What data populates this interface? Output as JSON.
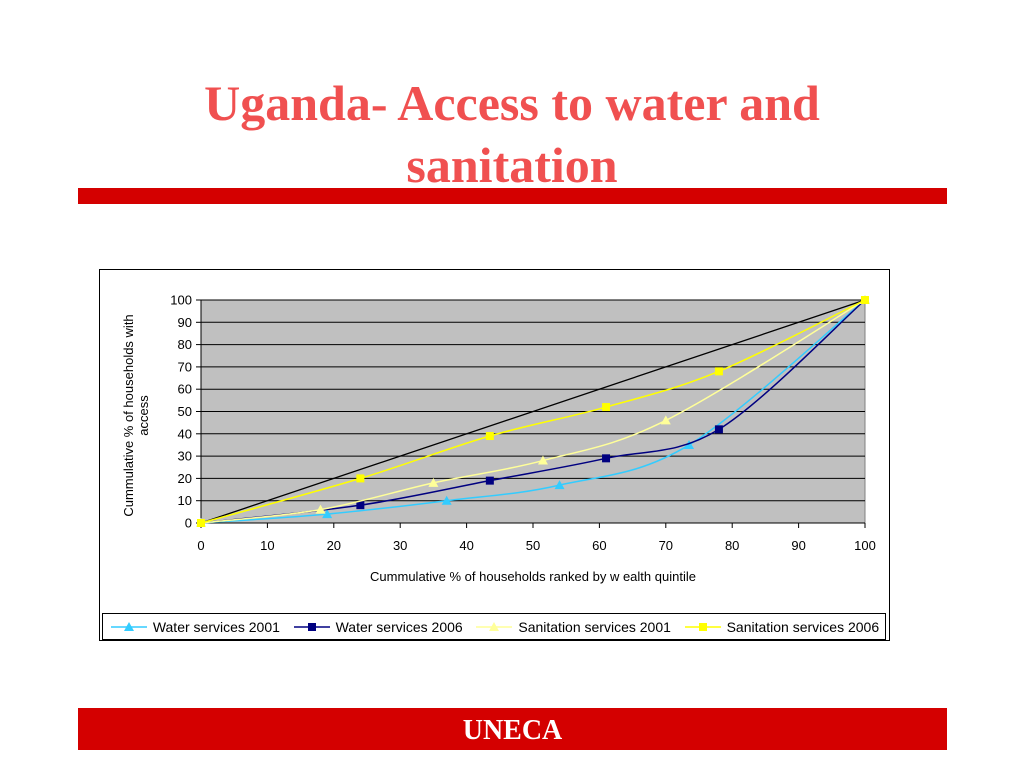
{
  "slide": {
    "title_line1": "Uganda- Access to water and",
    "title_line2": "sanitation",
    "footer": "UNECA",
    "title_color": "#f05050",
    "bar_color": "#d40000"
  },
  "chart_data": {
    "type": "line",
    "xlabel": "Cummulative % of households ranked by w ealth quintile",
    "ylabel_line1": "Cummulative % of households with",
    "ylabel_line2": "access",
    "xlim": [
      0,
      100
    ],
    "ylim": [
      0,
      100
    ],
    "xticks": [
      0,
      10,
      20,
      30,
      40,
      50,
      60,
      70,
      80,
      90,
      100
    ],
    "yticks": [
      0,
      10,
      20,
      30,
      40,
      50,
      60,
      70,
      80,
      90,
      100
    ],
    "grid": "horizontal",
    "plot_background": "#c0c0c0",
    "legend_position": "bottom",
    "equality_line": {
      "x": [
        0,
        100
      ],
      "y": [
        0,
        100
      ],
      "color": "#000000"
    },
    "series": [
      {
        "name": "Water services 2001",
        "marker": "triangle",
        "color": "#33ccff",
        "x": [
          0,
          19,
          37,
          54,
          73.5,
          100
        ],
        "y": [
          0,
          4,
          10,
          17,
          35,
          100
        ]
      },
      {
        "name": "Water services 2006",
        "marker": "square",
        "color": "#000080",
        "x": [
          0,
          24,
          43.5,
          61,
          78,
          100
        ],
        "y": [
          0,
          8,
          19,
          29,
          42,
          100
        ]
      },
      {
        "name": "Sanitation services 2001",
        "marker": "triangle",
        "color": "#ffff99",
        "x": [
          0,
          18,
          35,
          51.5,
          70,
          100
        ],
        "y": [
          0,
          6,
          18,
          28,
          46,
          100
        ]
      },
      {
        "name": "Sanitation services 2006",
        "marker": "square",
        "color": "#ffff00",
        "x": [
          0,
          24,
          43.5,
          61,
          78,
          100
        ],
        "y": [
          0,
          20,
          39,
          52,
          68,
          100
        ]
      }
    ]
  }
}
